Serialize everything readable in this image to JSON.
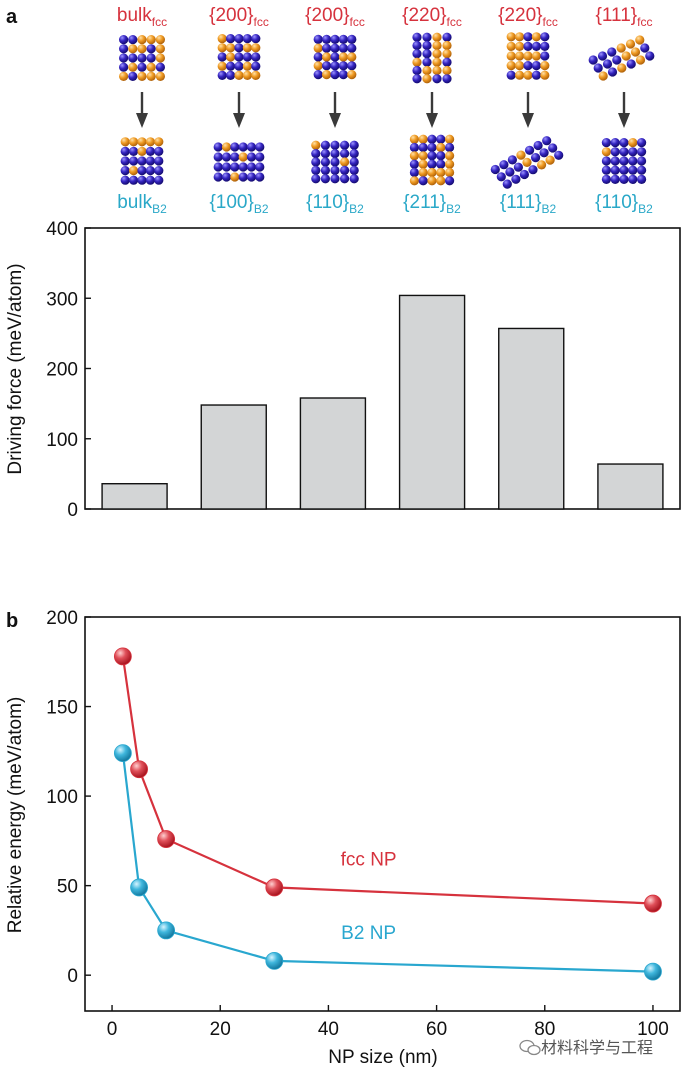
{
  "panel_a": {
    "letter": "a",
    "top_structures": [
      {
        "base": "bulk",
        "sub": "fcc"
      },
      {
        "base": "{200}",
        "sub": "fcc"
      },
      {
        "base": "{200}",
        "sub": "fcc"
      },
      {
        "base": "{220}",
        "sub": "fcc"
      },
      {
        "base": "{220}",
        "sub": "fcc"
      },
      {
        "base": "{111}",
        "sub": "fcc"
      }
    ],
    "bottom_structures": [
      {
        "base": "bulk",
        "sub": "B2"
      },
      {
        "base": "{100}",
        "sub": "B2"
      },
      {
        "base": "{110}",
        "sub": "B2"
      },
      {
        "base": "{211}",
        "sub": "B2"
      },
      {
        "base": "{111}",
        "sub": "B2"
      },
      {
        "base": "{110}",
        "sub": "B2"
      }
    ]
  },
  "panel_b": {
    "letter": "b"
  },
  "colors": {
    "fcc_label": "#d6323d",
    "b2_label": "#2aa8c8",
    "bar_fill": "#d3d5d6",
    "fcc_line": "#d6323d",
    "b2_line": "#29a7cf",
    "atom_orange": "#e8901a",
    "atom_blue": "#2a1fa0",
    "arrow": "#3a3a3a"
  },
  "watermark": "材料科学与工程",
  "chart_data": [
    {
      "type": "bar",
      "categories": [
        "bulk",
        "{100}",
        "{110}",
        "{211}",
        "{111}",
        "{110}"
      ],
      "values": [
        36,
        148,
        158,
        304,
        257,
        64
      ],
      "ylabel": "Driving force (meV/atom)",
      "xlabel": "",
      "ylim": [
        0,
        400
      ],
      "yticks": [
        0,
        100,
        200,
        300,
        400
      ]
    },
    {
      "type": "line",
      "xlabel": "NP size (nm)",
      "ylabel": "Relative energy (meV/atom)",
      "xlim": [
        -5,
        105
      ],
      "ylim": [
        -20,
        200
      ],
      "xticks": [
        0,
        20,
        40,
        60,
        80,
        100
      ],
      "yticks": [
        0,
        50,
        100,
        150,
        200
      ],
      "series": [
        {
          "name": "fcc NP",
          "x": [
            2,
            5,
            10,
            30,
            100
          ],
          "y": [
            178,
            115,
            76,
            49,
            40
          ]
        },
        {
          "name": "B2 NP",
          "x": [
            2,
            5,
            10,
            30,
            100
          ],
          "y": [
            124,
            49,
            25,
            8,
            2
          ]
        }
      ]
    }
  ]
}
